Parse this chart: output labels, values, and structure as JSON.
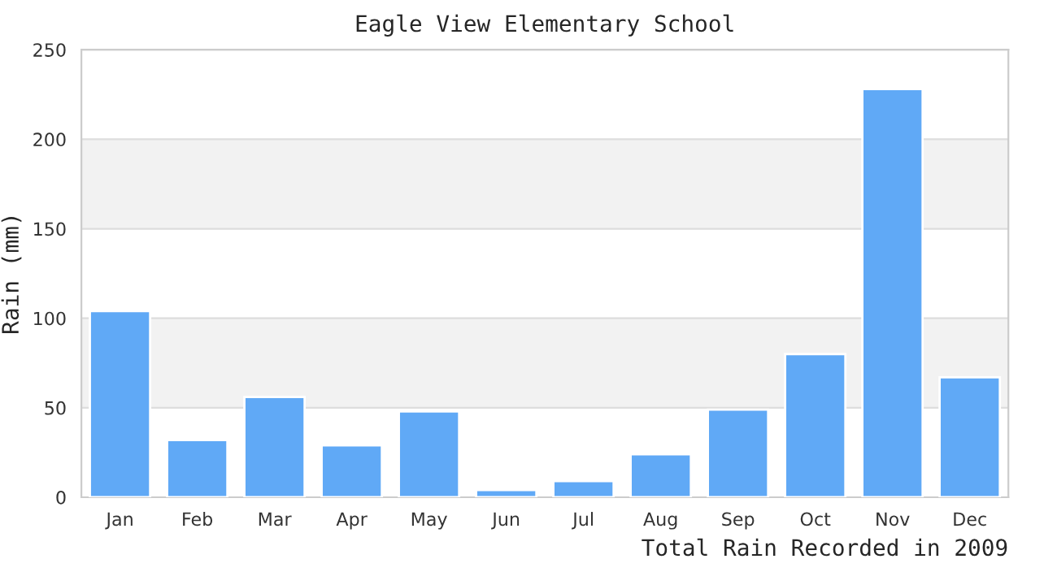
{
  "chart_data": {
    "type": "bar",
    "title": "Eagle View Elementary School",
    "xlabel": "Total Rain Recorded in 2009",
    "ylabel": "Rain (mm)",
    "categories": [
      "Jan",
      "Feb",
      "Mar",
      "Apr",
      "May",
      "Jun",
      "Jul",
      "Aug",
      "Sep",
      "Oct",
      "Nov",
      "Dec"
    ],
    "values": [
      104,
      32,
      56,
      29,
      48,
      4,
      9,
      24,
      49,
      80,
      228,
      67
    ],
    "color": "#60a9f6",
    "ylim": [
      0,
      250
    ],
    "yticks": [
      0,
      50,
      100,
      150,
      200,
      250
    ],
    "grid": "y",
    "bands": [
      {
        "axis": "y",
        "from": 50,
        "to": 100,
        "color": "#f2f2f2"
      },
      {
        "axis": "y",
        "from": 150,
        "to": 200,
        "color": "#f2f2f2"
      }
    ]
  }
}
